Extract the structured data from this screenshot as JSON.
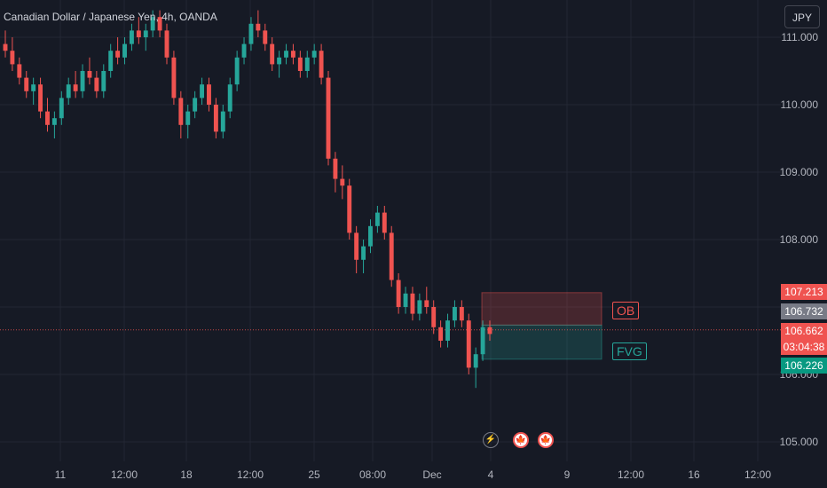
{
  "header": {
    "title": "Canadian Dollar / Japanese Yen, 4h, OANDA",
    "currency_button": "JPY"
  },
  "colors": {
    "up": "#26a69a",
    "down": "#ef5350",
    "background": "#161a25",
    "grid": "#232733"
  },
  "price_axis": {
    "ticks": [
      "111.000",
      "110.000",
      "109.000",
      "108.000",
      "106.000",
      "105.000"
    ]
  },
  "time_axis": {
    "ticks": [
      "11",
      "12:00",
      "18",
      "12:00",
      "25",
      "08:00",
      "Dec",
      "4",
      "9",
      "12:00",
      "16",
      "12:00"
    ]
  },
  "badges": {
    "ob_top": "107.213",
    "ob_bottom": "106.732",
    "last_price": "106.662",
    "countdown": "03:04:38",
    "fvg_bottom": "106.226"
  },
  "zones": {
    "ob_label": "OB",
    "fvg_label": "FVG"
  },
  "events": [
    {
      "name": "lightning",
      "glyph": "⚡"
    },
    {
      "name": "flag-ca-1",
      "glyph": "🍁"
    },
    {
      "name": "flag-ca-2",
      "glyph": "🍁"
    }
  ],
  "chart_data": {
    "type": "candlestick",
    "title": "Canadian Dollar / Japanese Yen, 4h, OANDA",
    "symbol": "CADJPY",
    "interval": "4h",
    "source": "OANDA",
    "ylim": [
      104.8,
      111.4
    ],
    "zones": [
      {
        "label": "OB",
        "top": 107.213,
        "bottom": 106.732
      },
      {
        "label": "FVG",
        "top": 106.732,
        "bottom": 106.226
      }
    ],
    "last_price": 106.662,
    "ohlc": [
      [
        110.9,
        111.1,
        110.7,
        110.8
      ],
      [
        110.8,
        111.0,
        110.5,
        110.6
      ],
      [
        110.6,
        110.7,
        110.3,
        110.4
      ],
      [
        110.4,
        110.5,
        110.1,
        110.2
      ],
      [
        110.2,
        110.4,
        110.0,
        110.3
      ],
      [
        110.3,
        110.4,
        109.8,
        109.9
      ],
      [
        109.9,
        110.1,
        109.6,
        109.7
      ],
      [
        109.7,
        109.9,
        109.5,
        109.8
      ],
      [
        109.8,
        110.2,
        109.7,
        110.1
      ],
      [
        110.1,
        110.4,
        110.0,
        110.3
      ],
      [
        110.3,
        110.5,
        110.1,
        110.2
      ],
      [
        110.2,
        110.6,
        110.1,
        110.5
      ],
      [
        110.5,
        110.7,
        110.3,
        110.4
      ],
      [
        110.4,
        110.5,
        110.1,
        110.2
      ],
      [
        110.2,
        110.6,
        110.1,
        110.5
      ],
      [
        110.5,
        110.9,
        110.4,
        110.8
      ],
      [
        110.8,
        111.0,
        110.6,
        110.7
      ],
      [
        110.7,
        111.0,
        110.6,
        110.9
      ],
      [
        110.9,
        111.2,
        110.8,
        111.1
      ],
      [
        111.1,
        111.3,
        110.9,
        111.0
      ],
      [
        111.0,
        111.2,
        110.8,
        111.1
      ],
      [
        111.1,
        111.4,
        111.0,
        111.3
      ],
      [
        111.3,
        111.4,
        111.0,
        111.1
      ],
      [
        111.1,
        111.2,
        110.6,
        110.7
      ],
      [
        110.7,
        110.8,
        110.0,
        110.1
      ],
      [
        110.1,
        110.2,
        109.5,
        109.7
      ],
      [
        109.7,
        110.0,
        109.5,
        109.9
      ],
      [
        109.9,
        110.2,
        109.8,
        110.1
      ],
      [
        110.1,
        110.4,
        110.0,
        110.3
      ],
      [
        110.3,
        110.4,
        109.9,
        110.0
      ],
      [
        110.0,
        110.1,
        109.5,
        109.6
      ],
      [
        109.6,
        110.0,
        109.5,
        109.9
      ],
      [
        109.9,
        110.4,
        109.8,
        110.3
      ],
      [
        110.3,
        110.8,
        110.2,
        110.7
      ],
      [
        110.7,
        111.0,
        110.6,
        110.9
      ],
      [
        110.9,
        111.3,
        110.8,
        111.2
      ],
      [
        111.2,
        111.4,
        111.0,
        111.1
      ],
      [
        111.1,
        111.2,
        110.8,
        110.9
      ],
      [
        110.9,
        111.0,
        110.5,
        110.6
      ],
      [
        110.6,
        110.8,
        110.4,
        110.7
      ],
      [
        110.7,
        110.9,
        110.6,
        110.8
      ],
      [
        110.8,
        110.9,
        110.6,
        110.7
      ],
      [
        110.7,
        110.8,
        110.4,
        110.5
      ],
      [
        110.5,
        110.8,
        110.4,
        110.7
      ],
      [
        110.7,
        110.9,
        110.6,
        110.8
      ],
      [
        110.8,
        110.9,
        110.3,
        110.4
      ],
      [
        110.4,
        110.5,
        109.1,
        109.2
      ],
      [
        109.2,
        109.3,
        108.7,
        108.9
      ],
      [
        108.9,
        109.1,
        108.6,
        108.8
      ],
      [
        108.8,
        108.9,
        108.0,
        108.1
      ],
      [
        108.1,
        108.2,
        107.5,
        107.7
      ],
      [
        107.7,
        108.0,
        107.5,
        107.9
      ],
      [
        107.9,
        108.3,
        107.8,
        108.2
      ],
      [
        108.2,
        108.5,
        108.1,
        108.4
      ],
      [
        108.4,
        108.5,
        108.0,
        108.1
      ],
      [
        108.1,
        108.2,
        107.3,
        107.4
      ],
      [
        107.4,
        107.5,
        106.9,
        107.0
      ],
      [
        107.0,
        107.3,
        106.9,
        107.2
      ],
      [
        107.2,
        107.3,
        106.8,
        106.9
      ],
      [
        106.9,
        107.2,
        106.8,
        107.1
      ],
      [
        107.1,
        107.3,
        106.9,
        107.0
      ],
      [
        107.0,
        107.1,
        106.6,
        106.7
      ],
      [
        106.7,
        106.8,
        106.4,
        106.5
      ],
      [
        106.5,
        106.9,
        106.4,
        106.8
      ],
      [
        106.8,
        107.1,
        106.7,
        107.0
      ],
      [
        107.0,
        107.1,
        106.7,
        106.8
      ],
      [
        106.8,
        106.9,
        106.0,
        106.1
      ],
      [
        106.1,
        106.4,
        105.8,
        106.3
      ],
      [
        106.3,
        106.8,
        106.2,
        106.7
      ],
      [
        106.7,
        106.8,
        106.5,
        106.6
      ]
    ]
  }
}
